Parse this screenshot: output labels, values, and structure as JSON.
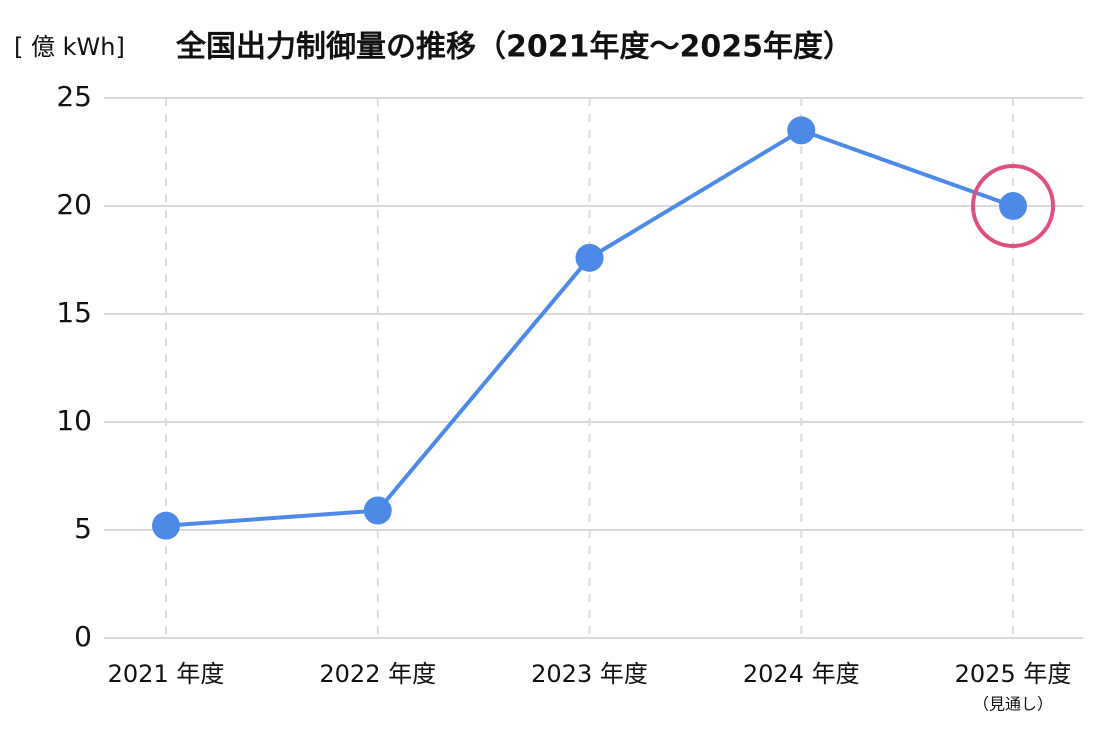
{
  "chart_data": {
    "type": "line",
    "title": "全国出力制御量の推移（2021年度〜2025年度）",
    "y_label": "[ 億 kWh]",
    "categories": [
      "2021 年度",
      "2022 年度",
      "2023 年度",
      "2024 年度",
      "2025 年度"
    ],
    "category_notes": [
      null,
      null,
      null,
      null,
      "（見通し）"
    ],
    "values": [
      5.2,
      5.9,
      17.6,
      23.5,
      20.0
    ],
    "color": "#4d8ae8",
    "ylim": [
      0,
      25
    ],
    "yticks": [
      0,
      5,
      10,
      15,
      20,
      25
    ],
    "grid": true,
    "highlight": {
      "index": 4,
      "color": "#e0507f"
    }
  }
}
